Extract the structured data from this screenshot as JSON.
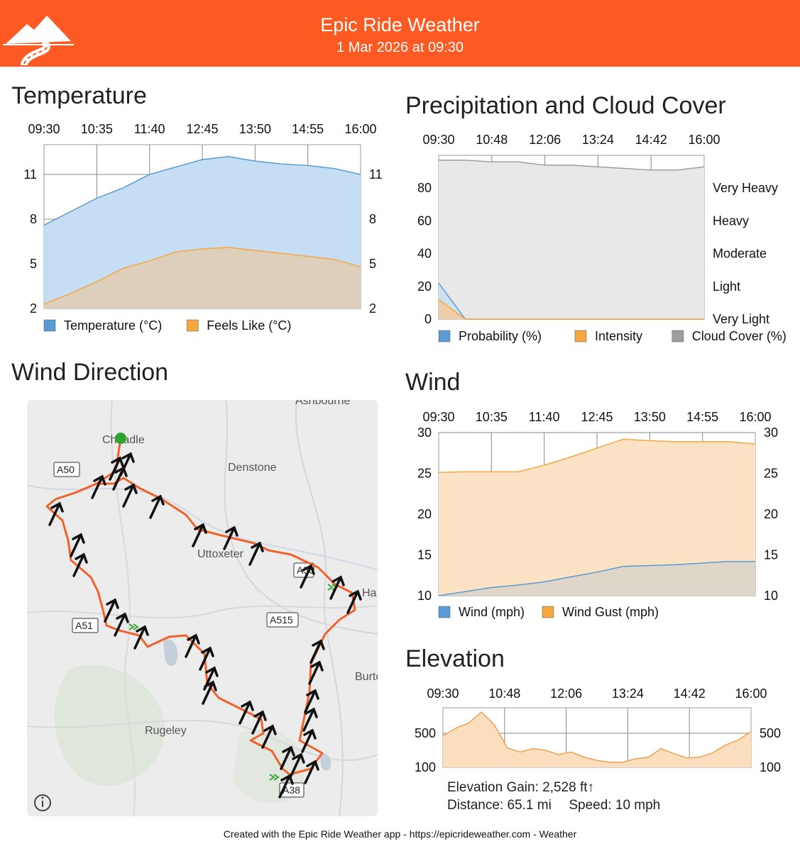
{
  "header": {
    "title": "Epic Ride Weather",
    "date": "1 Mar 2026 at 09:30",
    "colors": {
      "brand": "#fc5a22",
      "logo": "#ffffff"
    }
  },
  "temperature": {
    "title": "Temperature",
    "chart_data": {
      "type": "area",
      "x_ticks": [
        "09:30",
        "10:35",
        "11:40",
        "12:45",
        "13:50",
        "14:55",
        "16:00"
      ],
      "y_ticks": [
        2,
        5,
        8,
        11
      ],
      "ylim": [
        2,
        13
      ],
      "grid": true,
      "legend_position": "bottom",
      "series": [
        {
          "name": "Temperature (°C)",
          "color": "#5b9bd5",
          "values": [
            7.6,
            8.5,
            9.4,
            10.1,
            11.0,
            11.5,
            12.0,
            12.2,
            11.9,
            11.7,
            11.6,
            11.4,
            11.0
          ]
        },
        {
          "name": "Feels Like (°C)",
          "color": "#f5a742",
          "values": [
            2.3,
            3.0,
            3.8,
            4.7,
            5.2,
            5.8,
            6.0,
            6.1,
            5.9,
            5.7,
            5.5,
            5.3,
            4.8
          ]
        }
      ]
    }
  },
  "precipitation": {
    "title": "Precipitation and Cloud Cover",
    "chart_data": {
      "type": "area",
      "x_ticks": [
        "09:30",
        "10:48",
        "12:06",
        "13:24",
        "14:42",
        "16:00"
      ],
      "y_ticks": [
        0,
        20,
        40,
        60,
        80
      ],
      "ylim": [
        0,
        100
      ],
      "right_labels": [
        "Very Light",
        "Light",
        "Moderate",
        "Heavy",
        "Very Heavy"
      ],
      "grid": true,
      "legend_position": "bottom",
      "series": [
        {
          "name": "Probability (%)",
          "color": "#5b9bd5",
          "values": [
            22,
            0,
            0,
            0,
            0,
            0,
            0,
            0,
            0,
            0,
            0
          ]
        },
        {
          "name": "Intensity",
          "color": "#f5a742",
          "values": [
            12,
            0,
            0,
            0,
            0,
            0,
            0,
            0,
            0,
            0,
            0
          ]
        },
        {
          "name": "Cloud Cover (%)",
          "color": "#9e9e9e",
          "values": [
            97,
            97,
            96,
            96,
            94,
            94,
            93,
            92,
            91,
            91,
            93
          ]
        }
      ]
    }
  },
  "wind_direction": {
    "title": "Wind Direction",
    "map": {
      "place_labels": [
        "Ashbourne",
        "Cheadle",
        "Denstone",
        "Uttoxeter",
        "Rugeley",
        "Burton",
        "Ha"
      ],
      "road_labels": [
        "A50",
        "A50",
        "A515",
        "A51",
        "A38"
      ],
      "info_icon": "info-icon",
      "route_color": "#f0622a",
      "arrow_color": "#111111"
    }
  },
  "wind": {
    "title": "Wind",
    "chart_data": {
      "type": "area",
      "x_ticks": [
        "09:30",
        "10:35",
        "11:40",
        "12:45",
        "13:50",
        "14:55",
        "16:00"
      ],
      "y_ticks": [
        10,
        15,
        20,
        25,
        30
      ],
      "ylim": [
        10,
        30
      ],
      "grid": true,
      "legend_position": "bottom",
      "series": [
        {
          "name": "Wind (mph)",
          "color": "#5b9bd5",
          "values": [
            10.0,
            10.5,
            11.0,
            11.3,
            11.7,
            12.3,
            12.9,
            13.6,
            13.7,
            13.8,
            14.0,
            14.2,
            14.2
          ]
        },
        {
          "name": "Wind Gust (mph)",
          "color": "#f5a742",
          "values": [
            25.1,
            25.2,
            25.2,
            25.2,
            26.0,
            27.0,
            28.1,
            29.2,
            29.0,
            28.9,
            28.9,
            28.9,
            28.6
          ]
        }
      ]
    }
  },
  "elevation": {
    "title": "Elevation",
    "chart_data": {
      "type": "area",
      "x_ticks": [
        "09:30",
        "10:48",
        "12:06",
        "13:24",
        "14:42",
        "16:00"
      ],
      "y_ticks": [
        100,
        500
      ],
      "ylim": [
        100,
        800
      ],
      "grid": true,
      "series": [
        {
          "color": "#f5c089",
          "values": [
            470,
            560,
            620,
            750,
            600,
            330,
            280,
            320,
            300,
            250,
            280,
            220,
            180,
            160,
            160,
            200,
            220,
            320,
            260,
            210,
            220,
            270,
            360,
            420,
            520
          ]
        }
      ]
    },
    "gain_label": "Elevation Gain:",
    "gain_value": "2,528 ft↑",
    "distance_label": "Distance:",
    "distance_value": "65.1 mi",
    "speed_label": "Speed:",
    "speed_value": "10 mph"
  },
  "footer": {
    "text": "Created with the Epic Ride Weather app - https://epicrideweather.com -  Weather"
  }
}
